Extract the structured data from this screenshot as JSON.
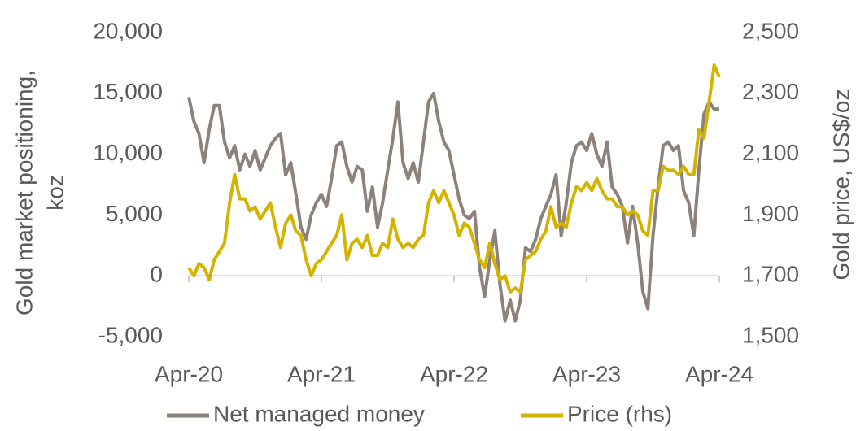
{
  "chart_data": {
    "type": "line",
    "y_label": [
      "Gold market positioning,",
      "koz"
    ],
    "y2_label": "Gold price, US$/oz",
    "categories": [
      "Apr-20",
      null,
      null,
      null,
      null,
      null,
      null,
      null,
      null,
      null,
      null,
      null,
      null,
      null,
      null,
      null,
      null,
      null,
      null,
      null,
      null,
      null,
      null,
      null,
      null,
      null,
      "Apr-21",
      null,
      null,
      null,
      null,
      null,
      null,
      null,
      null,
      null,
      null,
      null,
      null,
      null,
      null,
      null,
      null,
      null,
      null,
      null,
      null,
      null,
      null,
      null,
      null,
      null,
      "Apr-22",
      null,
      null,
      null,
      null,
      null,
      null,
      null,
      null,
      null,
      null,
      null,
      null,
      null,
      null,
      null,
      null,
      null,
      null,
      null,
      null,
      null,
      null,
      null,
      null,
      null,
      "Apr-23",
      null,
      null,
      null,
      null,
      null,
      null,
      null,
      null,
      null,
      null,
      null,
      null,
      null,
      null,
      null,
      null,
      null,
      null,
      null,
      null,
      null,
      null,
      null,
      null,
      null,
      "Apr-24"
    ],
    "series": [
      {
        "name": "Net managed money",
        "color": "#8c8279",
        "axis": "y",
        "values": [
          14700,
          12700,
          11700,
          9300,
          12000,
          14000,
          14000,
          11000,
          9700,
          10700,
          8700,
          10000,
          9000,
          10300,
          8700,
          9700,
          10700,
          11300,
          11700,
          8300,
          9300,
          6700,
          4000,
          3000,
          5000,
          6000,
          6700,
          5700,
          8000,
          10700,
          11000,
          9000,
          7700,
          9000,
          8700,
          5300,
          7300,
          4000,
          6000,
          8700,
          11300,
          14300,
          9300,
          8000,
          9300,
          7700,
          11000,
          14300,
          15000,
          12700,
          11000,
          10300,
          8300,
          6300,
          5000,
          4700,
          5300,
          700,
          -1700,
          1300,
          3700,
          -700,
          -3700,
          -2000,
          -3700,
          -2000,
          2300,
          2000,
          3000,
          4700,
          5700,
          6700,
          8300,
          3300,
          6000,
          9300,
          10700,
          11000,
          10300,
          11700,
          10000,
          9000,
          11000,
          7300,
          6700,
          5700,
          2700,
          5700,
          2700,
          -1300,
          -2700,
          3300,
          7300,
          10700,
          11000,
          10300,
          10700,
          7000,
          6000,
          3300,
          8700,
          13300,
          14300,
          13700,
          13700
        ]
      },
      {
        "name": "Price (rhs)",
        "color": "#d4b300",
        "axis": "y2",
        "values": [
          1727,
          1700,
          1740,
          1727,
          1687,
          1753,
          1780,
          1807,
          1940,
          2033,
          1953,
          1953,
          1913,
          1927,
          1887,
          1913,
          1940,
          1860,
          1793,
          1873,
          1900,
          1847,
          1833,
          1753,
          1700,
          1740,
          1753,
          1780,
          1807,
          1833,
          1900,
          1753,
          1807,
          1820,
          1793,
          1833,
          1767,
          1767,
          1807,
          1793,
          1887,
          1820,
          1793,
          1807,
          1793,
          1820,
          1833,
          1940,
          1980,
          1940,
          1980,
          1940,
          1900,
          1833,
          1873,
          1860,
          1807,
          1753,
          1727,
          1807,
          1740,
          1687,
          1700,
          1647,
          1660,
          1647,
          1753,
          1767,
          1780,
          1820,
          1847,
          1927,
          1860,
          1873,
          1860,
          1940,
          1993,
          1980,
          2007,
          1980,
          2020,
          1980,
          1953,
          1953,
          1927,
          1927,
          1900,
          1913,
          1900,
          1847,
          1833,
          1980,
          1980,
          2060,
          2047,
          2047,
          2033,
          2060,
          2033,
          2033,
          2180,
          2153,
          2273,
          2393,
          2353
        ]
      }
    ],
    "ylim": [
      -5000,
      20000
    ],
    "yticks": [
      {
        "value": -5000,
        "label": "-5,000"
      },
      0,
      {
        "value": 5000,
        "label": "5,000"
      },
      {
        "value": 10000,
        "label": "10,000"
      },
      {
        "value": 15000,
        "label": "15,000"
      },
      {
        "value": 20000,
        "label": "20,000"
      }
    ],
    "y2lim": [
      1500,
      2500
    ],
    "y2ticks": [
      {
        "value": 1500,
        "label": "1,500"
      },
      {
        "value": 1700,
        "label": "1,700"
      },
      {
        "value": 1900,
        "label": "1,900"
      },
      {
        "value": 2100,
        "label": "2,100"
      },
      {
        "value": 2300,
        "label": "2,300"
      },
      {
        "value": 2500,
        "label": "2,500"
      }
    ],
    "legend": "bottom"
  }
}
